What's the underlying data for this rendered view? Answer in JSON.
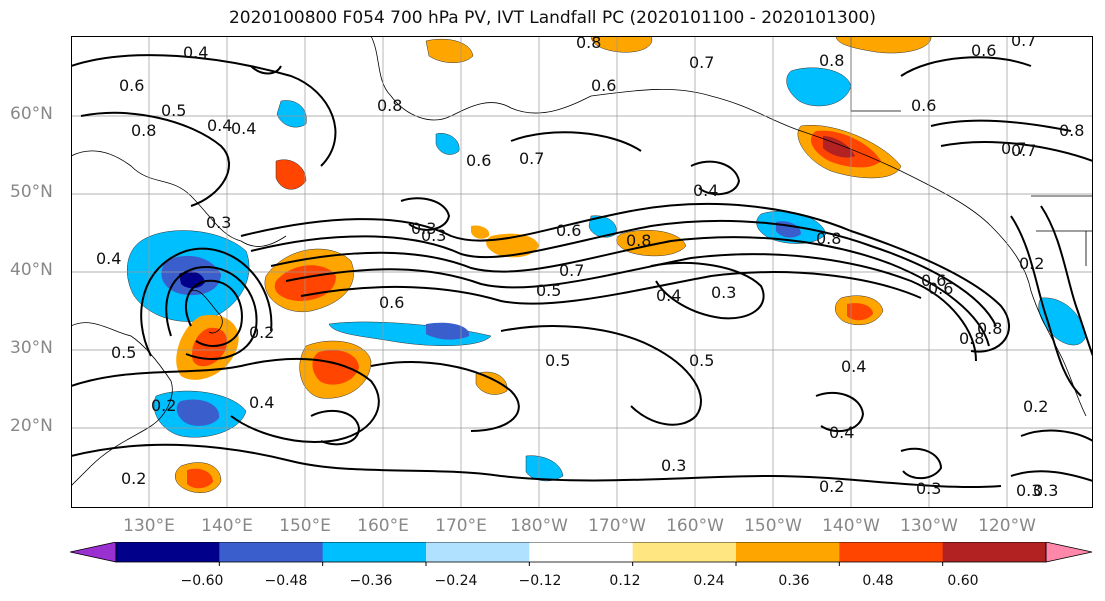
{
  "title": "2020100800 F054 700 hPa PV, IVT Landfall PC (2020101100 - 2020101300)",
  "axes": {
    "lat_labels": [
      "60°N",
      "50°N",
      "40°N",
      "30°N",
      "20°N"
    ],
    "lon_labels": [
      "130°E",
      "140°E",
      "150°E",
      "160°E",
      "170°E",
      "180°W",
      "170°W",
      "160°W",
      "150°W",
      "140°W",
      "130°W",
      "120°W"
    ]
  },
  "colorbar": {
    "ticks": [
      "−0.60",
      "−0.48",
      "−0.36",
      "−0.24",
      "−0.12",
      "0.12",
      "0.24",
      "0.36",
      "0.48",
      "0.60"
    ],
    "colors": [
      "#9b30d0",
      "#00008b",
      "#3a5fcd",
      "#00bfff",
      "#b0e2ff",
      "#ffffff",
      "#ffe680",
      "#ffa500",
      "#ff4500",
      "#b22222",
      "#ff88aa"
    ]
  },
  "contour_labels": [
    "0.4",
    "0.6",
    "0.8",
    "0.7",
    "0.6",
    "0.8",
    "0.7",
    "0.6",
    "0.7",
    "0.8",
    "0.5",
    "0.4",
    "0.6",
    "0.8",
    "0.4",
    "0.3",
    "0.8",
    "0.6",
    "0.7",
    "0.6",
    "0.3",
    "0.4",
    "0.5",
    "0.7",
    "0.8",
    "0.4",
    "0.3",
    "0.2",
    "0.6",
    "0.8",
    "0.5",
    "0.4",
    "0.4",
    "0.3",
    "0.2",
    "0.3",
    "0.3",
    "0.2",
    "0.2",
    "0.4",
    "0.2",
    "0.3",
    "0.5",
    "0.5",
    "0.8",
    "0.6",
    "0.3",
    "0.2",
    "0.4",
    "0.8",
    "0.7",
    "0.6"
  ]
}
